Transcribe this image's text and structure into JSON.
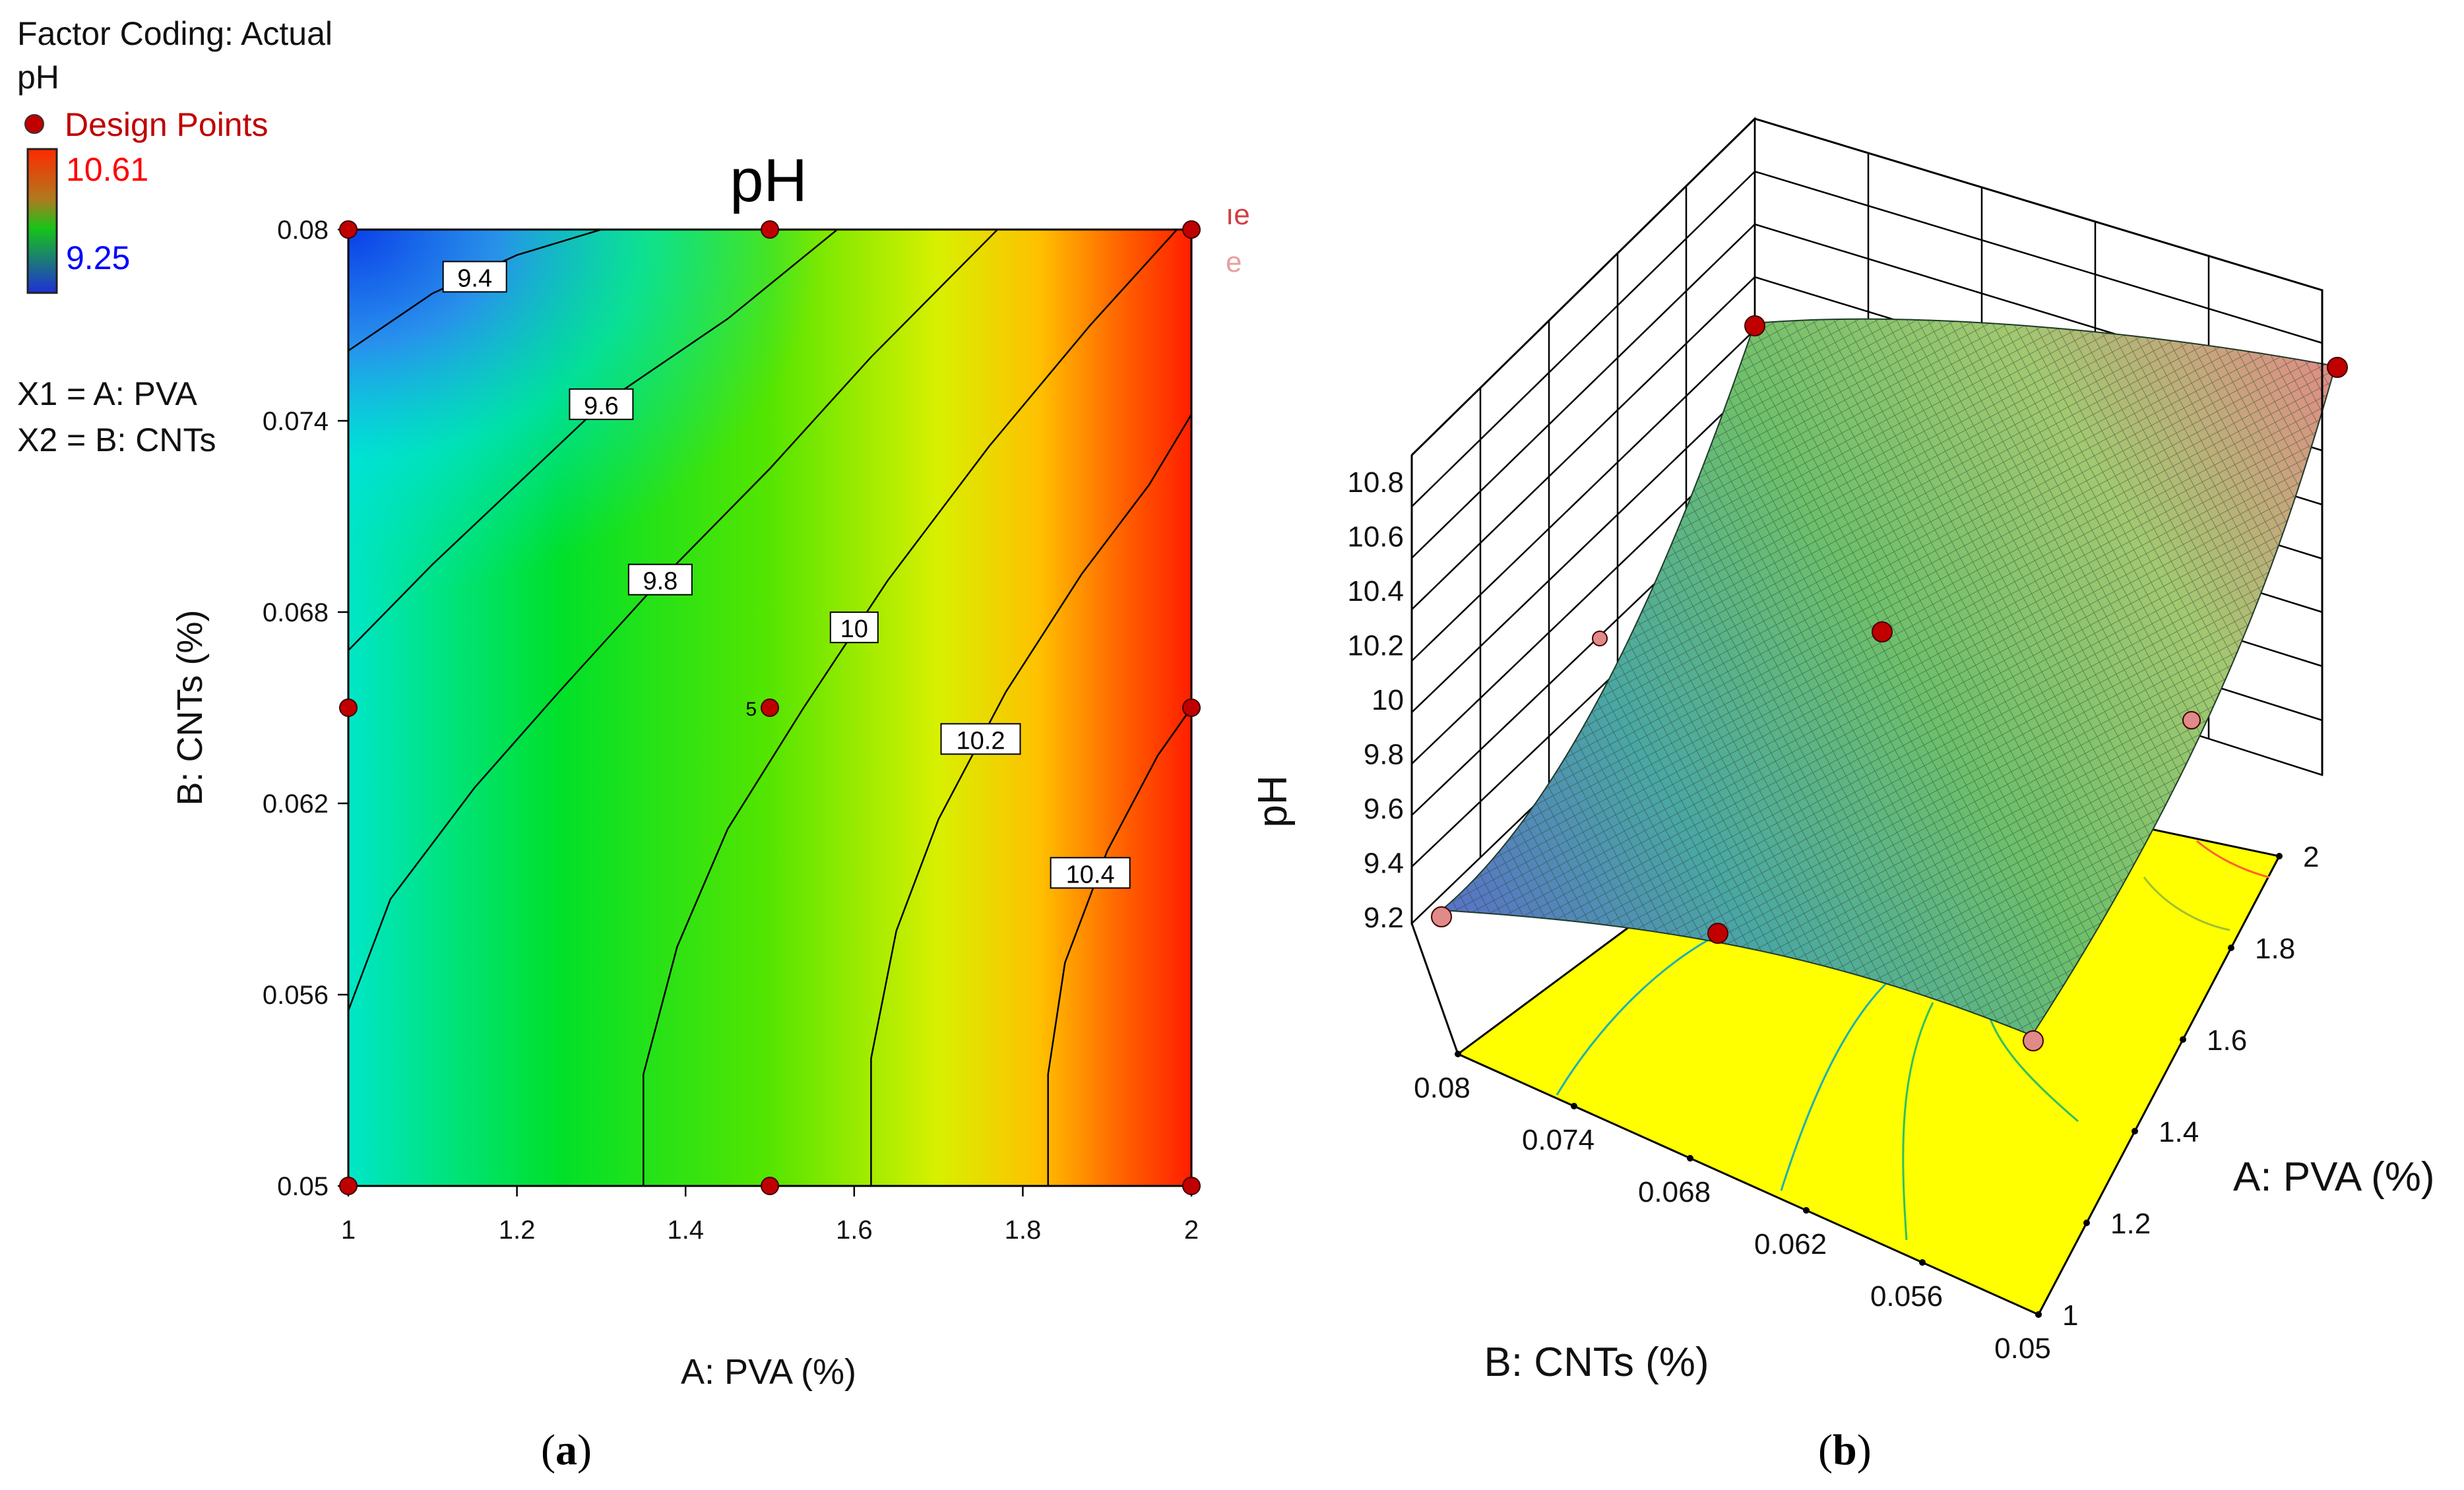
{
  "figure": {
    "panel_a_label": "a",
    "panel_b_label": "b"
  },
  "legend": {
    "factor_coding": "Factor Coding: Actual",
    "response": "pH",
    "design_points": "Design Points",
    "color_high": "10.61",
    "color_low": "9.25",
    "x1_def": "X1 = A: PVA",
    "x2_def": "X2 = B: CNTs",
    "clipped_1": "ıe",
    "clipped_2": "e"
  },
  "colors": {
    "design_point": "#c00000",
    "design_point_light": "#e08a8a",
    "high_label": "#ff0000",
    "low_label": "#0000ff",
    "legend_text_red": "#c00000",
    "floor": "#ffff00"
  },
  "chart_data": [
    {
      "type": "contour",
      "title": "pH",
      "xlabel": "A: PVA (%)",
      "ylabel": "B: CNTs (%)",
      "xlim": [
        1,
        2
      ],
      "ylim": [
        0.05,
        0.08
      ],
      "x_ticks": [
        "1",
        "1.2",
        "1.4",
        "1.6",
        "1.8",
        "2"
      ],
      "y_ticks": [
        "0.05",
        "0.056",
        "0.062",
        "0.068",
        "0.074",
        "0.08"
      ],
      "response_range": [
        9.25,
        10.61
      ],
      "contour_levels": [
        {
          "level": 9.4,
          "label": "9.4",
          "points": [
            [
              1.0,
              0.0762
            ],
            [
              1.1,
              0.078
            ],
            [
              1.2,
              0.0792
            ],
            [
              1.3,
              0.08
            ]
          ],
          "label_at": [
            1.15,
            0.0785
          ]
        },
        {
          "level": 9.6,
          "label": "9.6",
          "points": [
            [
              1.0,
              0.0668
            ],
            [
              1.1,
              0.0695
            ],
            [
              1.2,
              0.072
            ],
            [
              1.3,
              0.0745
            ],
            [
              1.45,
              0.0772
            ],
            [
              1.58,
              0.08
            ]
          ],
          "label_at": [
            1.3,
            0.0745
          ]
        },
        {
          "level": 9.8,
          "label": "9.8",
          "points": [
            [
              1.0,
              0.0555
            ],
            [
              1.05,
              0.059
            ],
            [
              1.15,
              0.0625
            ],
            [
              1.25,
              0.0655
            ],
            [
              1.37,
              0.069
            ],
            [
              1.5,
              0.0725
            ],
            [
              1.62,
              0.076
            ],
            [
              1.77,
              0.08
            ]
          ],
          "label_at": [
            1.37,
            0.069
          ]
        },
        {
          "level": 10.0,
          "label": "10",
          "points": [
            [
              1.35,
              0.05
            ],
            [
              1.35,
              0.0535
            ],
            [
              1.39,
              0.0575
            ],
            [
              1.45,
              0.0612
            ],
            [
              1.54,
              0.065
            ],
            [
              1.64,
              0.069
            ],
            [
              1.76,
              0.0732
            ],
            [
              1.88,
              0.077
            ],
            [
              2.0,
              0.0805
            ]
          ],
          "label_at": [
            1.6,
            0.0675
          ]
        },
        {
          "level": 10.2,
          "label": "10.2",
          "points": [
            [
              1.62,
              0.05
            ],
            [
              1.62,
              0.054
            ],
            [
              1.65,
              0.058
            ],
            [
              1.7,
              0.0615
            ],
            [
              1.78,
              0.0655
            ],
            [
              1.87,
              0.0692
            ],
            [
              1.95,
              0.072
            ],
            [
              2.0,
              0.0742
            ]
          ],
          "label_at": [
            1.75,
            0.064
          ]
        },
        {
          "level": 10.4,
          "label": "10.4",
          "points": [
            [
              1.83,
              0.05
            ],
            [
              1.83,
              0.0535
            ],
            [
              1.85,
              0.057
            ],
            [
              1.9,
              0.0605
            ],
            [
              1.96,
              0.0635
            ],
            [
              2.0,
              0.065
            ]
          ],
          "label_at": [
            1.88,
            0.0598
          ]
        }
      ],
      "design_points": [
        {
          "x": 1.0,
          "y": 0.08
        },
        {
          "x": 1.5,
          "y": 0.08
        },
        {
          "x": 2.0,
          "y": 0.08
        },
        {
          "x": 1.0,
          "y": 0.065
        },
        {
          "x": 1.5,
          "y": 0.065
        },
        {
          "x": 2.0,
          "y": 0.065
        },
        {
          "x": 1.0,
          "y": 0.05
        },
        {
          "x": 1.5,
          "y": 0.05
        },
        {
          "x": 2.0,
          "y": 0.05
        }
      ],
      "center_point_replicates": "5"
    },
    {
      "type": "surface",
      "zlabel": "pH",
      "xlabel": "A: PVA (%)",
      "ylabel": "B: CNTs (%)",
      "x_ticks": [
        "1",
        "1.2",
        "1.4",
        "1.6",
        "1.8",
        "2"
      ],
      "y_ticks": [
        "0.08",
        "0.074",
        "0.068",
        "0.062",
        "0.056",
        "0.05"
      ],
      "z_ticks": [
        "9.2",
        "9.4",
        "9.6",
        "9.8",
        "10",
        "10.2",
        "10.4",
        "10.6",
        "10.8"
      ],
      "zlim": [
        9.2,
        10.8
      ]
    }
  ]
}
